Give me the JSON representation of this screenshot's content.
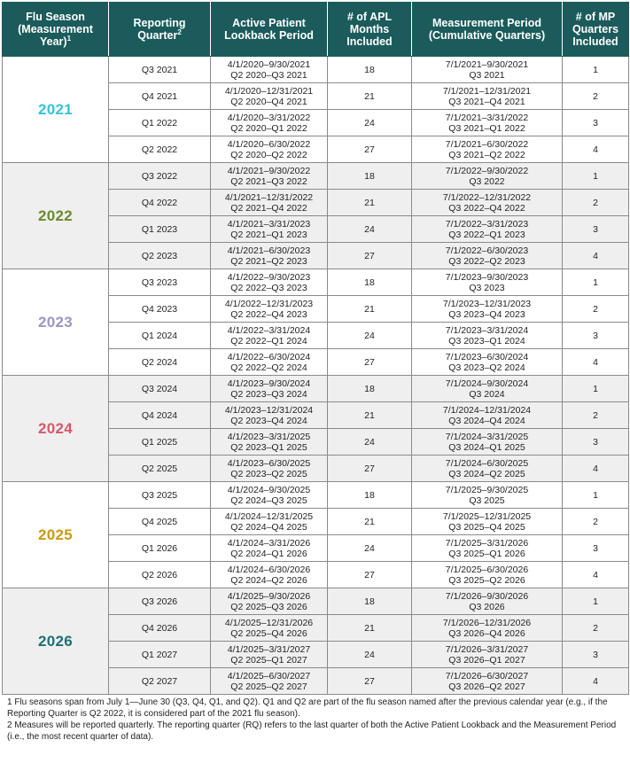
{
  "headers": {
    "season_line1": "Flu Season",
    "season_line2": "(Measurement",
    "season_line3": "Year)",
    "season_sup": "1",
    "rq_line1": "Reporting",
    "rq_line2": "Quarter",
    "rq_sup": "2",
    "apl_line1": "Active Patient",
    "apl_line2": "Lookback Period",
    "aplm_line1": "# of APL",
    "aplm_line2": "Months",
    "aplm_line3": "Included",
    "mp_line1": "Measurement Period",
    "mp_line2": "(Cumulative Quarters)",
    "mpq_line1": "# of MP",
    "mpq_line2": "Quarters",
    "mpq_line3": "Included"
  },
  "seasons": [
    {
      "year": "2021",
      "color": "#35c3d4",
      "shaded": false,
      "rows": [
        {
          "rq": "Q3 2021",
          "apl1": "4/1/2020–9/30/2021",
          "apl2": "Q2 2020–Q3 2021",
          "months": "18",
          "mp1": "7/1/2021–9/30/2021",
          "mp2": "Q3 2021",
          "mpq": "1"
        },
        {
          "rq": "Q4 2021",
          "apl1": "4/1/2020–12/31/2021",
          "apl2": "Q2 2020–Q4 2021",
          "months": "21",
          "mp1": "7/1/2021–12/31/2021",
          "mp2": "Q3 2021–Q4 2021",
          "mpq": "2"
        },
        {
          "rq": "Q1 2022",
          "apl1": "4/1/2020–3/31/2022",
          "apl2": "Q2 2020–Q1 2022",
          "months": "24",
          "mp1": "7/1/2021–3/31/2022",
          "mp2": "Q3 2021–Q1 2022",
          "mpq": "3"
        },
        {
          "rq": "Q2 2022",
          "apl1": "4/1/2020–6/30/2022",
          "apl2": "Q2 2020–Q2 2022",
          "months": "27",
          "mp1": "7/1/2021–6/30/2022",
          "mp2": "Q3 2021–Q2 2022",
          "mpq": "4"
        }
      ]
    },
    {
      "year": "2022",
      "color": "#6a8a2e",
      "shaded": true,
      "rows": [
        {
          "rq": "Q3 2022",
          "apl1": "4/1/2021–9/30/2022",
          "apl2": "Q2 2021–Q3 2022",
          "months": "18",
          "mp1": "7/1/2022–9/30/2022",
          "mp2": "Q3 2022",
          "mpq": "1"
        },
        {
          "rq": "Q4 2022",
          "apl1": "4/1/2021–12/31/2022",
          "apl2": "Q2 2021–Q4 2022",
          "months": "21",
          "mp1": "7/1/2022–12/31/2022",
          "mp2": "Q3 2022–Q4 2022",
          "mpq": "2"
        },
        {
          "rq": "Q1 2023",
          "apl1": "4/1/2021–3/31/2023",
          "apl2": "Q2 2021–Q1 2023",
          "months": "24",
          "mp1": "7/1/2022–3/31/2023",
          "mp2": "Q3 2022–Q1 2023",
          "mpq": "3"
        },
        {
          "rq": "Q2 2023",
          "apl1": "4/1/2021–6/30/2023",
          "apl2": "Q2 2021–Q2 2023",
          "months": "27",
          "mp1": "7/1/2022–6/30/2023",
          "mp2": "Q3 2022–Q2 2023",
          "mpq": "4"
        }
      ]
    },
    {
      "year": "2023",
      "color": "#9a97c4",
      "shaded": false,
      "rows": [
        {
          "rq": "Q3 2023",
          "apl1": "4/1/2022–9/30/2023",
          "apl2": "Q2 2022–Q3 2023",
          "months": "18",
          "mp1": "7/1/2023–9/30/2023",
          "mp2": "Q3 2023",
          "mpq": "1"
        },
        {
          "rq": "Q4 2023",
          "apl1": "4/1/2022–12/31/2023",
          "apl2": "Q2 2022–Q4 2023",
          "months": "21",
          "mp1": "7/1/2023–12/31/2023",
          "mp2": "Q3 2023–Q4 2023",
          "mpq": "2"
        },
        {
          "rq": "Q1 2024",
          "apl1": "4/1/2022–3/31/2024",
          "apl2": "Q2 2022–Q1 2024",
          "months": "24",
          "mp1": "7/1/2023–3/31/2024",
          "mp2": "Q3 2023–Q1 2024",
          "mpq": "3"
        },
        {
          "rq": "Q2 2024",
          "apl1": "4/1/2022–6/30/2024",
          "apl2": "Q2 2022–Q2 2024",
          "months": "27",
          "mp1": "7/1/2023–6/30/2024",
          "mp2": "Q3 2023–Q2 2024",
          "mpq": "4"
        }
      ]
    },
    {
      "year": "2024",
      "color": "#d6566a",
      "shaded": true,
      "rows": [
        {
          "rq": "Q3 2024",
          "apl1": "4/1/2023–9/30/2024",
          "apl2": "Q2 2023–Q3 2024",
          "months": "18",
          "mp1": "7/1/2024–9/30/2024",
          "mp2": "Q3 2024",
          "mpq": "1"
        },
        {
          "rq": "Q4 2024",
          "apl1": "4/1/2023–12/31/2024",
          "apl2": "Q2 2023–Q4 2024",
          "months": "21",
          "mp1": "7/1/2024–12/31/2024",
          "mp2": "Q3 2024–Q4 2024",
          "mpq": "2"
        },
        {
          "rq": "Q1 2025",
          "apl1": "4/1/2023–3/31/2025",
          "apl2": "Q2 2023–Q1 2025",
          "months": "24",
          "mp1": "7/1/2024–3/31/2025",
          "mp2": "Q3 2024–Q1 2025",
          "mpq": "3"
        },
        {
          "rq": "Q2 2025",
          "apl1": "4/1/2023–6/30/2025",
          "apl2": "Q2 2023–Q2 2025",
          "months": "27",
          "mp1": "7/1/2024–6/30/2025",
          "mp2": "Q3 2024–Q2 2025",
          "mpq": "4"
        }
      ]
    },
    {
      "year": "2025",
      "color": "#c79a14",
      "shaded": false,
      "rows": [
        {
          "rq": "Q3 2025",
          "apl1": "4/1/2024–9/30/2025",
          "apl2": "Q2 2024–Q3 2025",
          "months": "18",
          "mp1": "7/1/2025–9/30/2025",
          "mp2": "Q3 2025",
          "mpq": "1"
        },
        {
          "rq": "Q4 2025",
          "apl1": "4/1/2024–12/31/2025",
          "apl2": "Q2 2024–Q4 2025",
          "months": "21",
          "mp1": "7/1/2025–12/31/2025",
          "mp2": "Q3 2025–Q4 2025",
          "mpq": "2"
        },
        {
          "rq": "Q1 2026",
          "apl1": "4/1/2024–3/31/2026",
          "apl2": "Q2 2024–Q1 2026",
          "months": "24",
          "mp1": "7/1/2025–3/31/2026",
          "mp2": "Q3 2025–Q1 2026",
          "mpq": "3"
        },
        {
          "rq": "Q2 2026",
          "apl1": "4/1/2024–6/30/2026",
          "apl2": "Q2 2024–Q2 2026",
          "months": "27",
          "mp1": "7/1/2025–6/30/2026",
          "mp2": "Q3 2025–Q2 2026",
          "mpq": "4"
        }
      ]
    },
    {
      "year": "2026",
      "color": "#1f6f73",
      "shaded": true,
      "rows": [
        {
          "rq": "Q3 2026",
          "apl1": "4/1/2025–9/30/2026",
          "apl2": "Q2 2025–Q3 2026",
          "months": "18",
          "mp1": "7/1/2026–9/30/2026",
          "mp2": "Q3 2026",
          "mpq": "1"
        },
        {
          "rq": "Q4 2026",
          "apl1": "4/1/2025–12/31/2026",
          "apl2": "Q2 2025–Q4 2026",
          "months": "21",
          "mp1": "7/1/2026–12/31/2026",
          "mp2": "Q3 2026–Q4 2026",
          "mpq": "2"
        },
        {
          "rq": "Q1 2027",
          "apl1": "4/1/2025–3/31/2027",
          "apl2": "Q2 2025–Q1 2027",
          "months": "24",
          "mp1": "7/1/2026–3/31/2027",
          "mp2": "Q3 2026–Q1 2027",
          "mpq": "3"
        },
        {
          "rq": "Q2 2027",
          "apl1": "4/1/2025–6/30/2027",
          "apl2": "Q2 2025–Q2 2027",
          "months": "27",
          "mp1": "7/1/2026–6/30/2027",
          "mp2": "Q3 2026–Q2 2027",
          "mpq": "4"
        }
      ]
    }
  ],
  "footnotes": {
    "note1": "1 Flu seasons span from July 1—June 30 (Q3, Q4, Q1, and Q2). Q1 and Q2 are part of the flu season named after the previous calendar year (e.g., if the Reporting Quarter is Q2 2022, it is considered part of the 2021 flu season).",
    "note2": "2 Measures will be reported quarterly. The reporting quarter (RQ) refers to the last quarter of both the Active Patient Lookback and the Measurement Period (i.e., the most recent quarter of data)."
  }
}
